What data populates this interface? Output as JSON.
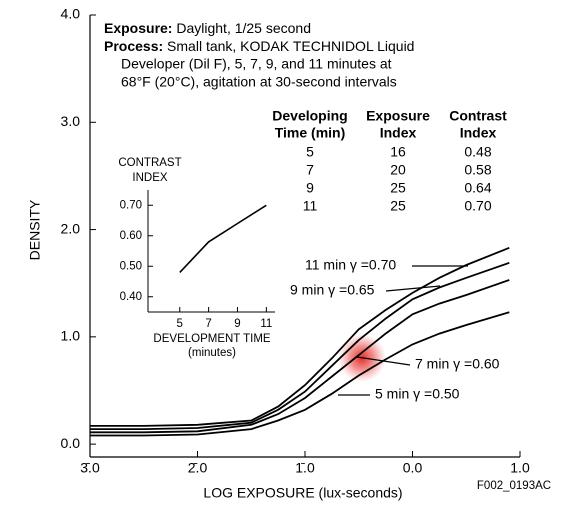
{
  "chart_data": [
    {
      "type": "line",
      "xlabel": "LOG EXPOSURE (lux-seconds)",
      "ylabel": "DENSITY",
      "x": [
        -3,
        -2.5,
        -2,
        -1.5,
        -1.25,
        -1,
        -0.75,
        -0.5,
        -0.25,
        0,
        0.25,
        0.5,
        0.9
      ],
      "series": [
        {
          "name": "11 min γ =0.70",
          "color": "#000000",
          "values": [
            0.17,
            0.17,
            0.18,
            0.22,
            0.35,
            0.55,
            0.8,
            1.07,
            1.25,
            1.41,
            1.55,
            1.67,
            1.83
          ]
        },
        {
          "name": "9 min γ =0.65",
          "color": "#000000",
          "values": [
            0.14,
            0.14,
            0.15,
            0.2,
            0.32,
            0.49,
            0.73,
            0.97,
            1.17,
            1.35,
            1.46,
            1.55,
            1.69
          ]
        },
        {
          "name": "7 min γ =0.60",
          "color": "#000000",
          "values": [
            0.11,
            0.11,
            0.12,
            0.18,
            0.28,
            0.43,
            0.63,
            0.83,
            1.03,
            1.21,
            1.31,
            1.39,
            1.53
          ]
        },
        {
          "name": "5 min γ =0.50",
          "color": "#000000",
          "values": [
            0.08,
            0.08,
            0.09,
            0.14,
            0.22,
            0.32,
            0.47,
            0.64,
            0.79,
            0.93,
            1.03,
            1.11,
            1.23
          ]
        }
      ],
      "xlim": [
        -3,
        1
      ],
      "ylim": [
        -0.12,
        4
      ],
      "xticks": [
        {
          "value": -3,
          "label": "3̄.0"
        },
        {
          "value": -2,
          "label": "2̄.0"
        },
        {
          "value": -1,
          "label": "1̄.0"
        },
        {
          "value": 0,
          "label": "0.0"
        },
        {
          "value": 1,
          "label": "1.0"
        }
      ],
      "yticks": [
        {
          "value": 0,
          "label": "0.0"
        },
        {
          "value": 1,
          "label": "1.0"
        },
        {
          "value": 2,
          "label": "2.0"
        },
        {
          "value": 3,
          "label": "3.0"
        },
        {
          "value": 4,
          "label": "4.0"
        }
      ]
    },
    {
      "type": "line",
      "xlabel": [
        "DEVELOPMENT TIME",
        "(minutes)"
      ],
      "ylabel": [
        "CONTRAST",
        "INDEX"
      ],
      "x": [
        5,
        7,
        9,
        11
      ],
      "values": [
        0.48,
        0.58,
        0.64,
        0.7
      ],
      "color": "#000000",
      "xlim": [
        2.8,
        11.6
      ],
      "ylim": [
        0.35,
        0.75
      ],
      "xticks": [
        5,
        7,
        9,
        11
      ],
      "yticks": [
        {
          "value": 0.4,
          "label": "0.40"
        },
        {
          "value": 0.5,
          "label": "0.50"
        },
        {
          "value": 0.6,
          "label": "0.60"
        },
        {
          "value": 0.7,
          "label": "0.70"
        }
      ]
    }
  ],
  "text_block": {
    "exposure": {
      "label": "Exposure:",
      "text": "Daylight, 1/25 second"
    },
    "process": {
      "label": "Process:",
      "lines": [
        "Small tank, KODAK TECHNIDOL Liquid",
        "Developer (Dil F), 5, 7, 9, and 11 minutes at",
        "68°F (20°C), agitation at 30-second intervals"
      ]
    }
  },
  "table": {
    "header": [
      [
        "Developing",
        "Time (min)"
      ],
      [
        "Exposure",
        "Index"
      ],
      [
        "Contrast",
        "Index"
      ]
    ],
    "rows": [
      [
        "5",
        "16",
        "0.48"
      ],
      [
        "7",
        "20",
        "0.58"
      ],
      [
        "9",
        "25",
        "0.64"
      ],
      [
        "11",
        "25",
        "0.70"
      ]
    ]
  },
  "figure_code": "F002_0193AC"
}
